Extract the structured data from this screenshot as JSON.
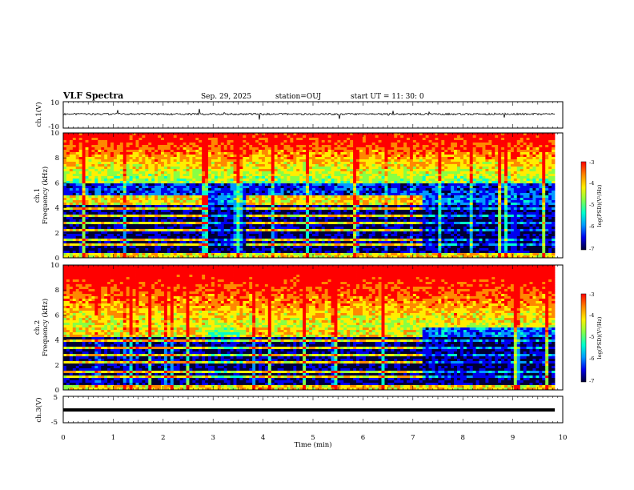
{
  "header": {
    "title": "VLF Spectra",
    "date": "Sep. 29, 2025",
    "station": "station=OUJ",
    "start_ut": "start  UT =   11: 30: 0"
  },
  "panels": {
    "ch1v": {
      "ylabel": "ch.1(V)",
      "ytick_top": "10",
      "ytick_bottom": "-10"
    },
    "spec1": {
      "ylabel1": "ch.1",
      "ylabel2": "Frequency  (kHz)"
    },
    "spec2": {
      "ylabel1": "ch.2",
      "ylabel2": "Frequency  (kHz)"
    },
    "ch3v": {
      "ylabel": "ch.3(V)",
      "ytick_top": "5",
      "ytick_bottom": "-5"
    }
  },
  "colorbar": {
    "label": "log(PSD)(V²/Hz)",
    "ticks": [
      "-3",
      "-4",
      "-5",
      "-6",
      "-7"
    ],
    "colors": [
      "#ff0000",
      "#ff8800",
      "#ffee00",
      "#88ff44",
      "#00ffcc",
      "#0099ff",
      "#0000ee",
      "#000033"
    ]
  },
  "xaxis": {
    "label": "Time  (min)",
    "ticks": [
      "0",
      "1",
      "2",
      "3",
      "4",
      "5",
      "6",
      "7",
      "8",
      "9",
      "10"
    ]
  },
  "chart_data": {
    "type": "heatmap",
    "title": "VLF Spectra",
    "xlabel": "Time (min)",
    "xlim": [
      0,
      10
    ],
    "ylabel": "Frequency (kHz)",
    "ylim": [
      0,
      10
    ],
    "y_ticks": [
      0,
      2,
      4,
      6,
      8,
      10
    ],
    "colorbar": {
      "label": "log(PSD)(V²/Hz)",
      "range": [
        -7,
        -3
      ]
    },
    "series": [
      {
        "name": "ch.1",
        "segments": [
          {
            "t_start": 0.0,
            "t_end": 2.9,
            "band_kHz": [
              1.5,
              5.0
            ],
            "intensity": "high"
          },
          {
            "t_start": 2.9,
            "t_end": 3.6,
            "band_kHz": [
              1.5,
              5.0
            ],
            "intensity": "low"
          },
          {
            "t_start": 3.6,
            "t_end": 7.15,
            "band_kHz": [
              1.5,
              5.0
            ],
            "intensity": "high"
          },
          {
            "t_start": 7.15,
            "t_end": 9.85,
            "band_kHz": [
              1.5,
              5.0
            ],
            "intensity": "low"
          }
        ],
        "noise_band_kHz": [
          6,
          10
        ]
      },
      {
        "name": "ch.2",
        "segments": [
          {
            "t_start": 0.0,
            "t_end": 2.9,
            "band_kHz": [
              1.0,
              5.0
            ],
            "intensity": "high"
          },
          {
            "t_start": 2.9,
            "t_end": 3.6,
            "band_kHz": [
              1.0,
              5.0
            ],
            "intensity": "medium"
          },
          {
            "t_start": 3.6,
            "t_end": 7.15,
            "band_kHz": [
              1.0,
              5.0
            ],
            "intensity": "high"
          },
          {
            "t_start": 7.15,
            "t_end": 9.85,
            "band_kHz": [
              1.0,
              5.0
            ],
            "intensity": "low"
          }
        ],
        "noise_band_kHz": [
          5,
          10
        ]
      }
    ],
    "waveforms": [
      {
        "name": "ch.1(V)",
        "ylim": [
          -10,
          10
        ],
        "mean": 0
      },
      {
        "name": "ch.3(V)",
        "ylim": [
          -5,
          5
        ],
        "mean": -1
      }
    ]
  }
}
